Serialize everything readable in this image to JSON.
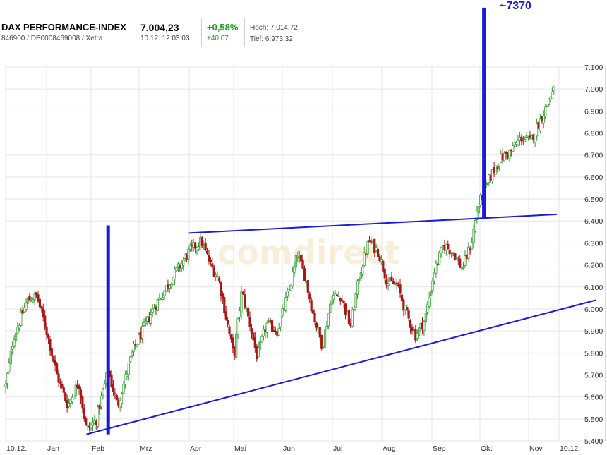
{
  "header": {
    "name": "DAX PERFORMANCE-INDEX",
    "ids": "846900 / DE0008469008 / Xetra",
    "last": "7.004,23",
    "time": "10.12. 12:03:03",
    "change_pct": "+0,58%",
    "change_abs": "+40,07",
    "high": "Hoch: 7.014,72",
    "low": "Tief: 6.973,32"
  },
  "colors": {
    "up": "#2e9e2e",
    "down": "#a81616",
    "annotation": "#1a1ad8",
    "positive": "#1f9e1f"
  },
  "watermark": "comdirect",
  "annotation": "~7370",
  "chart_data": {
    "type": "candlestick",
    "title": "",
    "xlabel": "",
    "ylabel": "",
    "ylim": [
      5400,
      7100
    ],
    "yticks": [
      "5.400",
      "5.500",
      "5.600",
      "5.700",
      "5.800",
      "5.900",
      "6.000",
      "6.100",
      "6.200",
      "6.300",
      "6.400",
      "6.500",
      "6.600",
      "6.700",
      "6.800",
      "6.900",
      "7.000",
      "7.100"
    ],
    "xticks": [
      "10.12.",
      "Jan",
      "Feb",
      "Mrz",
      "Apr",
      "Mai",
      "Jun",
      "Jul",
      "Aug",
      "Sep",
      "Okt",
      "Nov",
      "10.12."
    ],
    "grid": true,
    "y_axis_position": "right",
    "price_path": [
      {
        "d": 0,
        "v": 5650
      },
      {
        "d": 5,
        "v": 5870
      },
      {
        "d": 14,
        "v": 6040
      },
      {
        "d": 20,
        "v": 6060
      },
      {
        "d": 26,
        "v": 5910
      },
      {
        "d": 33,
        "v": 5700
      },
      {
        "d": 40,
        "v": 5560
      },
      {
        "d": 47,
        "v": 5670
      },
      {
        "d": 52,
        "v": 5450
      },
      {
        "d": 58,
        "v": 5490
      },
      {
        "d": 66,
        "v": 5720
      },
      {
        "d": 72,
        "v": 5560
      },
      {
        "d": 82,
        "v": 5810
      },
      {
        "d": 95,
        "v": 6000
      },
      {
        "d": 108,
        "v": 6150
      },
      {
        "d": 118,
        "v": 6260
      },
      {
        "d": 126,
        "v": 6310
      },
      {
        "d": 132,
        "v": 6200
      },
      {
        "d": 137,
        "v": 6140
      },
      {
        "d": 142,
        "v": 5960
      },
      {
        "d": 147,
        "v": 5780
      },
      {
        "d": 152,
        "v": 6080
      },
      {
        "d": 157,
        "v": 5940
      },
      {
        "d": 162,
        "v": 5780
      },
      {
        "d": 168,
        "v": 5930
      },
      {
        "d": 175,
        "v": 5900
      },
      {
        "d": 183,
        "v": 6100
      },
      {
        "d": 188,
        "v": 6250
      },
      {
        "d": 193,
        "v": 6140
      },
      {
        "d": 198,
        "v": 5980
      },
      {
        "d": 204,
        "v": 5830
      },
      {
        "d": 210,
        "v": 6060
      },
      {
        "d": 216,
        "v": 6060
      },
      {
        "d": 222,
        "v": 5920
      },
      {
        "d": 228,
        "v": 6160
      },
      {
        "d": 234,
        "v": 6310
      },
      {
        "d": 240,
        "v": 6260
      },
      {
        "d": 246,
        "v": 6120
      },
      {
        "d": 252,
        "v": 6110
      },
      {
        "d": 258,
        "v": 5980
      },
      {
        "d": 264,
        "v": 5880
      },
      {
        "d": 270,
        "v": 5950
      },
      {
        "d": 276,
        "v": 6170
      },
      {
        "d": 282,
        "v": 6290
      },
      {
        "d": 288,
        "v": 6260
      },
      {
        "d": 294,
        "v": 6180
      },
      {
        "d": 300,
        "v": 6300
      },
      {
        "d": 304,
        "v": 6460
      },
      {
        "d": 310,
        "v": 6570
      },
      {
        "d": 318,
        "v": 6680
      },
      {
        "d": 326,
        "v": 6720
      },
      {
        "d": 332,
        "v": 6780
      },
      {
        "d": 338,
        "v": 6760
      },
      {
        "d": 343,
        "v": 6840
      },
      {
        "d": 347,
        "v": 6900
      },
      {
        "d": 350,
        "v": 6960
      },
      {
        "d": 354,
        "v": 7000
      }
    ],
    "trendlines": [
      {
        "from": {
          "d": 52,
          "v": 5430
        },
        "to": {
          "d": 380,
          "v": 6040
        }
      },
      {
        "from": {
          "d": 118,
          "v": 6345
        },
        "to": {
          "d": 355,
          "v": 6430
        }
      }
    ],
    "vertical_markers": [
      {
        "d": 66,
        "from": 5430,
        "to": 6380
      },
      {
        "d": 308,
        "from": 6410,
        "to": 7370
      }
    ]
  }
}
